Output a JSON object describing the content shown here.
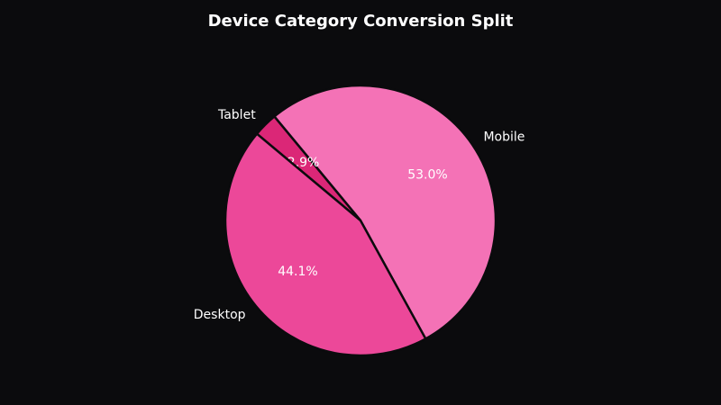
{
  "chart_data": {
    "type": "pie",
    "title": "Device Category Conversion Split",
    "categories": [
      "Mobile",
      "Tablet",
      "Desktop"
    ],
    "values": [
      53.0,
      2.9,
      44.1
    ],
    "value_labels": [
      "53.0%",
      "2.9%",
      "44.1%"
    ],
    "colors": [
      "#f472b6",
      "#db2777",
      "#ec4899"
    ]
  }
}
